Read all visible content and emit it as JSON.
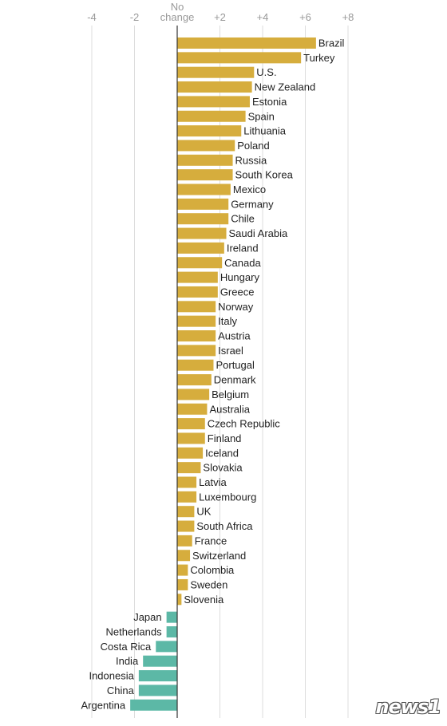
{
  "chart_data": {
    "type": "bar",
    "orientation": "horizontal",
    "zero_label": [
      "No",
      "change"
    ],
    "ticks": [
      "-4",
      "-2",
      "No change",
      "+2",
      "+4",
      "+6",
      "+8"
    ],
    "tick_values": [
      -4,
      -2,
      0,
      2,
      4,
      6,
      8
    ],
    "xlim": [
      -4.3,
      8.4
    ],
    "colors": {
      "positive": "#d6ad3d",
      "negative": "#5cb8a6",
      "zero_line": "#333333",
      "grid": "#dddddd"
    },
    "categories": [
      "Brazil",
      "Turkey",
      "U.S.",
      "New Zealand",
      "Estonia",
      "Spain",
      "Lithuania",
      "Poland",
      "Russia",
      "South Korea",
      "Mexico",
      "Germany",
      "Chile",
      "Saudi Arabia",
      "Ireland",
      "Canada",
      "Hungary",
      "Greece",
      "Norway",
      "Italy",
      "Austria",
      "Israel",
      "Portugal",
      "Denmark",
      "Belgium",
      "Australia",
      "Czech Republic",
      "Finland",
      "Iceland",
      "Slovakia",
      "Latvia",
      "Luxembourg",
      "UK",
      "South Africa",
      "France",
      "Switzerland",
      "Colombia",
      "Sweden",
      "Slovenia",
      "Japan",
      "Netherlands",
      "Costa Rica",
      "India",
      "Indonesia",
      "China",
      "Argentina"
    ],
    "values": [
      6.5,
      5.8,
      3.6,
      3.5,
      3.4,
      3.2,
      3.0,
      2.7,
      2.6,
      2.6,
      2.5,
      2.4,
      2.4,
      2.3,
      2.2,
      2.1,
      1.9,
      1.9,
      1.8,
      1.8,
      1.8,
      1.8,
      1.7,
      1.6,
      1.5,
      1.4,
      1.3,
      1.3,
      1.2,
      1.1,
      0.9,
      0.9,
      0.8,
      0.8,
      0.7,
      0.6,
      0.5,
      0.5,
      0.2,
      -0.5,
      -0.5,
      -1.0,
      -1.6,
      -1.8,
      -1.8,
      -2.2
    ]
  },
  "watermark": {
    "text": "news1"
  }
}
